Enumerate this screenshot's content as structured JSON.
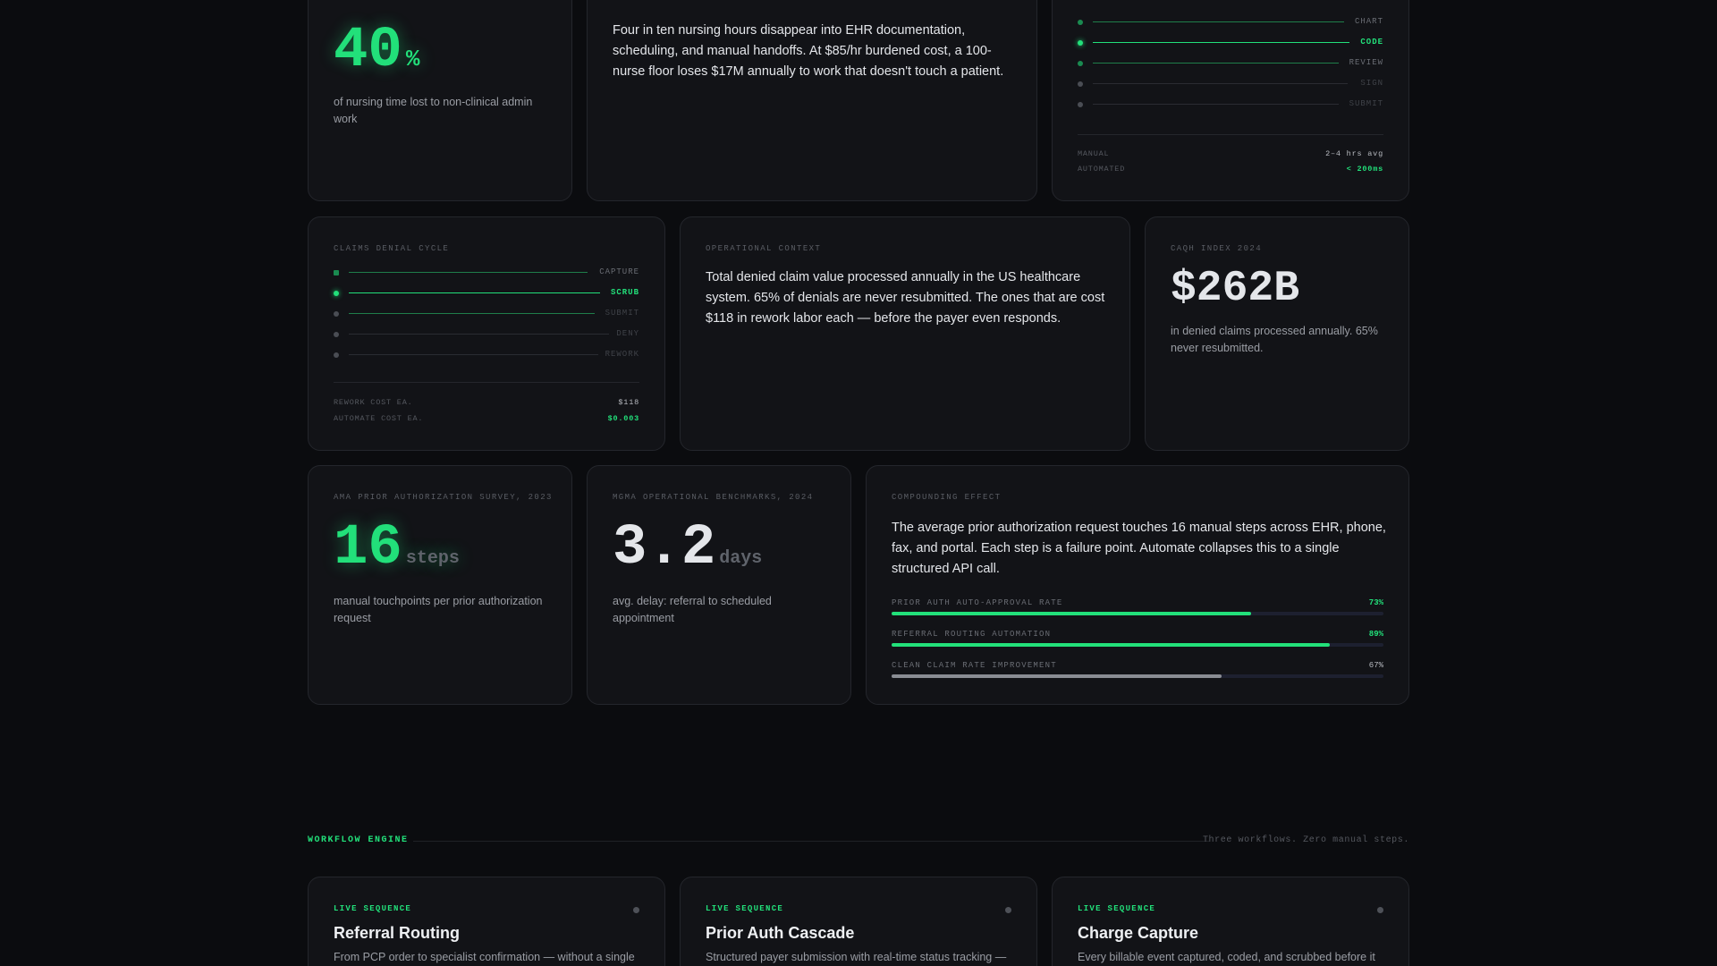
{
  "top_row": {
    "stat_card": {
      "value": "40",
      "unit": "%",
      "description": "of nursing time lost to non-clinical admin work"
    },
    "context_card": {
      "text": "Four in ten nursing hours disappear into EHR documentation, scheduling, and manual handoffs. At $85/hr burdened cost, a 100-nurse floor loses $17M annually to work that doesn't touch a patient."
    },
    "pipeline_card": {
      "steps": [
        {
          "label": "CHART",
          "state": "done"
        },
        {
          "label": "CODE",
          "state": "active"
        },
        {
          "label": "REVIEW",
          "state": "done"
        },
        {
          "label": "SIGN",
          "state": "pending"
        },
        {
          "label": "SUBMIT",
          "state": "pending"
        }
      ],
      "metrics": [
        {
          "key": "MANUAL",
          "value": "2–4 hrs avg"
        },
        {
          "key": "AUTOMATED",
          "value": "< 200ms"
        }
      ]
    }
  },
  "middle_row": {
    "denial_card": {
      "kicker": "CLAIMS DENIAL CYCLE",
      "steps": [
        {
          "label": "CAPTURE",
          "state": "done"
        },
        {
          "label": "SCRUB",
          "state": "active"
        },
        {
          "label": "SUBMIT",
          "state": "done"
        },
        {
          "label": "DENY",
          "state": "pending"
        },
        {
          "label": "REWORK",
          "state": "pending"
        }
      ],
      "metrics": [
        {
          "key": "REWORK COST EA.",
          "value": "$118"
        },
        {
          "key": "AUTOMATE COST EA.",
          "value": "$0.003"
        }
      ]
    },
    "context_card": {
      "kicker": "OPERATIONAL CONTEXT",
      "text": "Total denied claim value processed annually in the US healthcare system. 65% of denials are never resubmitted. The ones that are cost $118 in rework labor each — before the payer even responds."
    },
    "stat_card": {
      "kicker": "CAQH INDEX 2024",
      "value": "$262B",
      "description": "in denied claims processed annually. 65% never resubmitted."
    }
  },
  "bottom_row": {
    "steps_card": {
      "kicker": "AMA PRIOR AUTHORIZATION SURVEY, 2023",
      "value": "16",
      "unit": "steps",
      "description": "manual touchpoints per prior authorization request"
    },
    "days_card": {
      "kicker": "MGMA OPERATIONAL BENCHMARKS, 2024",
      "value": "3.2",
      "unit": "days",
      "description": "avg. delay: referral to scheduled appointment"
    },
    "compounding_card": {
      "kicker": "COMPOUNDING EFFECT",
      "text": "The average prior authorization request touches 16 manual steps across EHR, phone, fax, and portal. Each step is a failure point. Automate collapses this to a single structured API call.",
      "bars": [
        {
          "label": "PRIOR AUTH AUTO-APPROVAL RATE",
          "value_text": "73%",
          "fraction": 0.73,
          "color": "green"
        },
        {
          "label": "REFERRAL ROUTING AUTOMATION",
          "value_text": "89%",
          "fraction": 0.89,
          "color": "green"
        },
        {
          "label": "CLEAN CLAIM RATE IMPROVEMENT",
          "value_text": "67%",
          "fraction": 0.67,
          "color": "grey"
        }
      ]
    }
  },
  "workflow_section": {
    "label": "WORKFLOW ENGINE",
    "tagline": "Three workflows. Zero manual steps.",
    "cards": [
      {
        "kicker": "LIVE SEQUENCE",
        "title": "Referral Routing",
        "description": "From PCP order to specialist confirmation — without a single"
      },
      {
        "kicker": "LIVE SEQUENCE",
        "title": "Prior Auth Cascade",
        "description": "Structured payer submission with real-time status tracking —"
      },
      {
        "kicker": "LIVE SEQUENCE",
        "title": "Charge Capture",
        "description": "Every billable event captured, coded, and scrubbed before it"
      }
    ]
  },
  "colors": {
    "accent": "#22e07a",
    "background": "#0b0c0f",
    "card": "#121317"
  }
}
